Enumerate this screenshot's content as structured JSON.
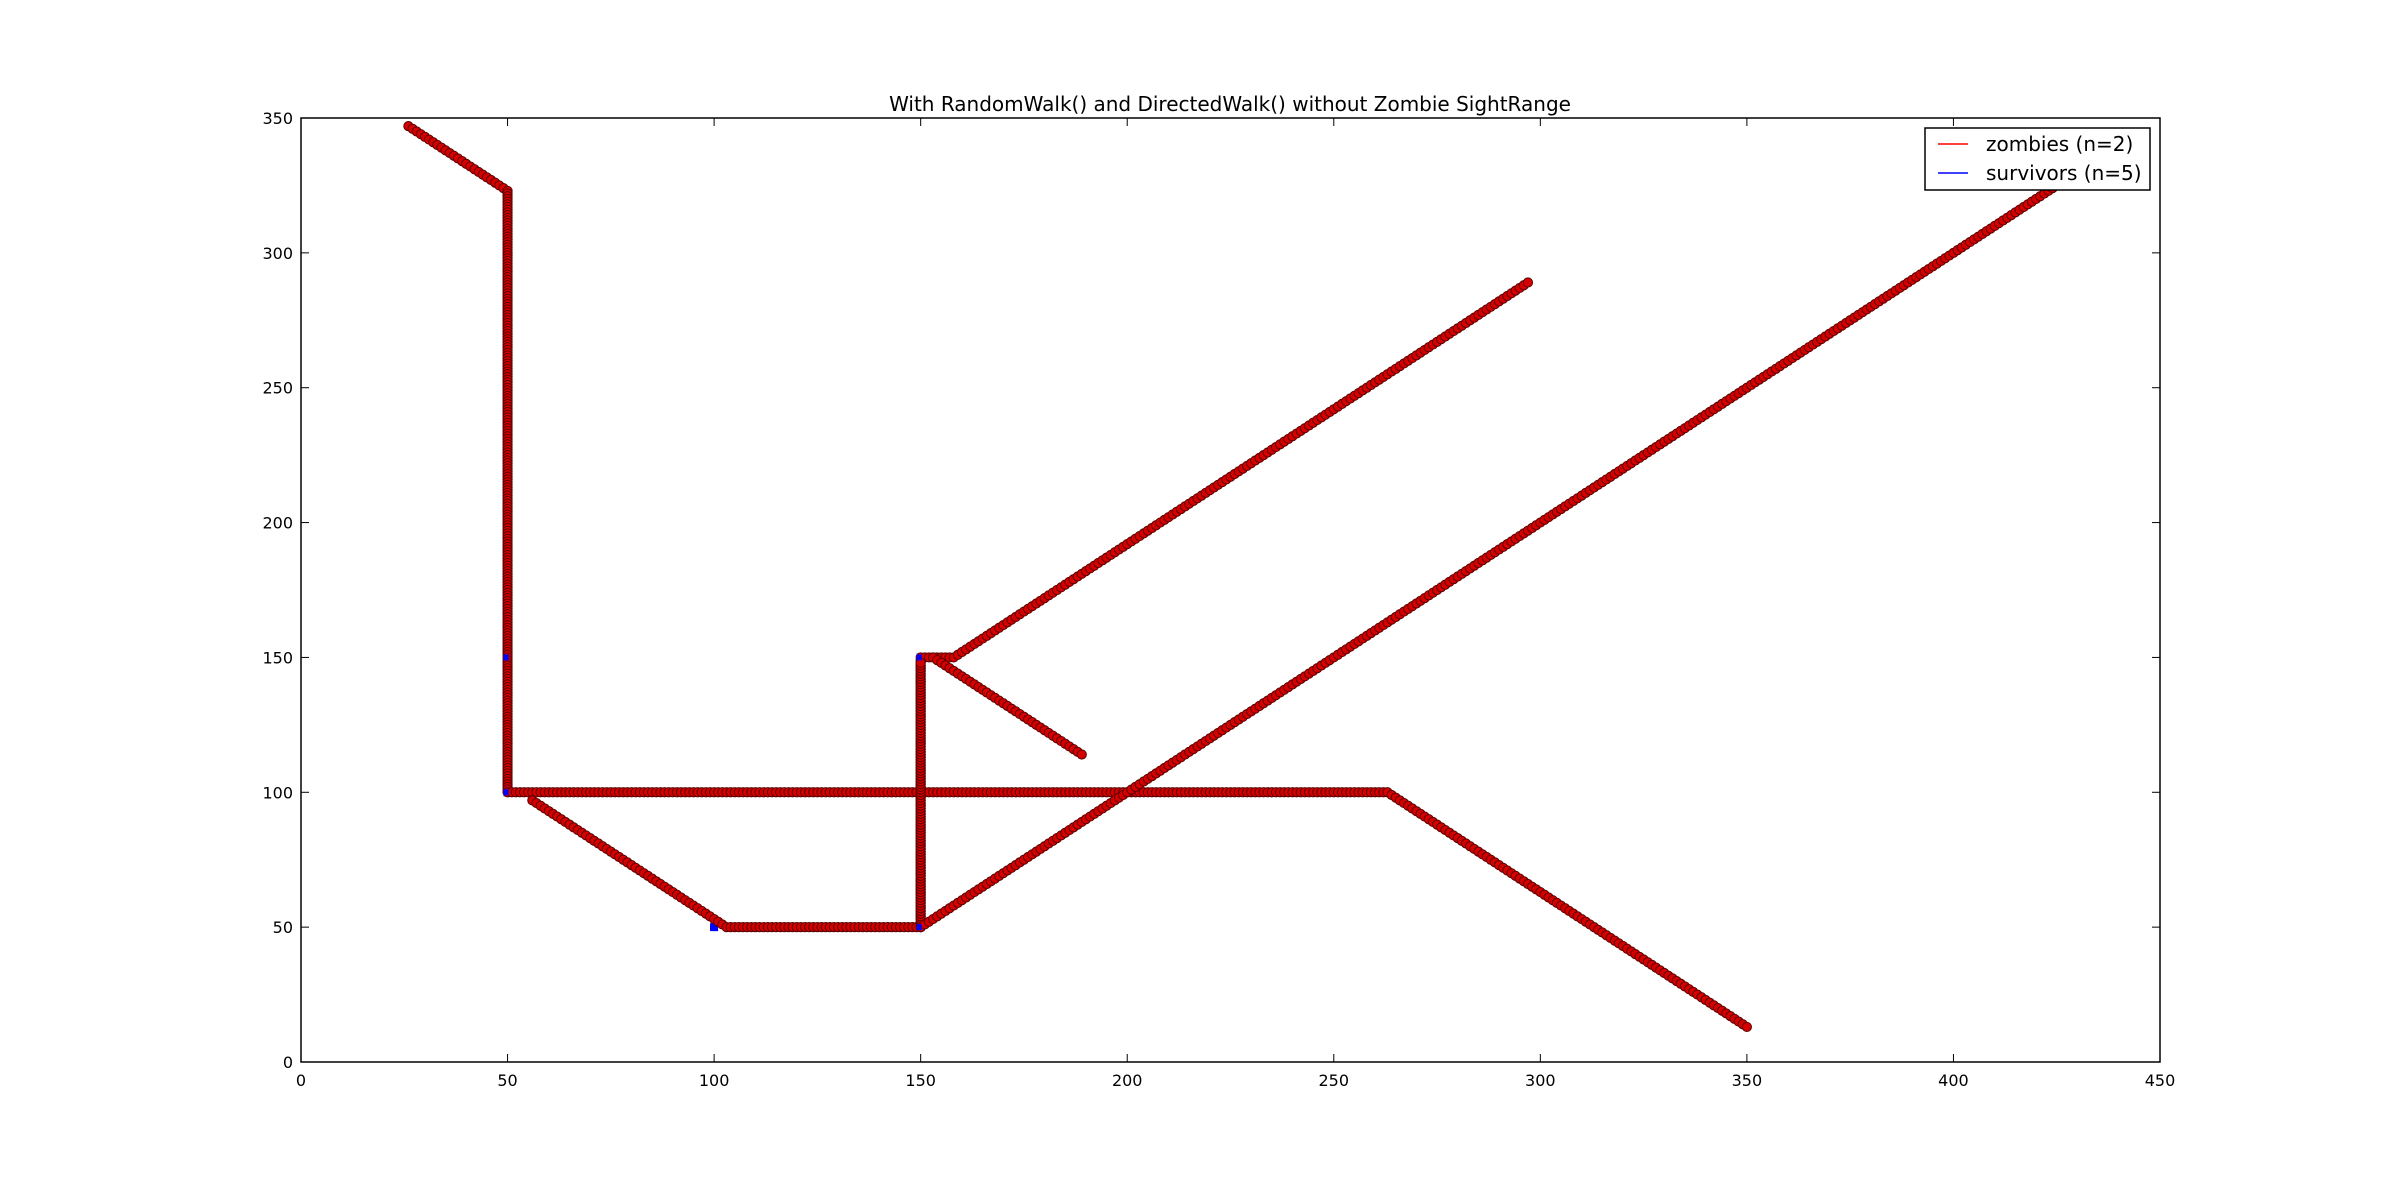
{
  "chart_data": {
    "type": "scatter",
    "title": "With RandomWalk() and DirectedWalk() without Zombie SightRange",
    "xlabel": "",
    "ylabel": "",
    "xlim": [
      0,
      450
    ],
    "ylim": [
      0,
      350
    ],
    "x_ticks": [
      0,
      50,
      100,
      150,
      200,
      250,
      300,
      350,
      400,
      450
    ],
    "y_ticks": [
      0,
      50,
      100,
      150,
      200,
      250,
      300,
      350
    ],
    "grid": false,
    "legend_position": "top-right",
    "legend": [
      {
        "label": "zombies (n=2)",
        "color": "#ff0000"
      },
      {
        "label": "survivors (n=5)",
        "color": "#0000ff"
      }
    ],
    "marker_fill": "#d40000",
    "marker_edge": "#5a0000",
    "series": [
      {
        "name": "zombies (n=2)",
        "color": "#ff0000",
        "paths": [
          [
            [
              26,
              347
            ],
            [
              50,
              323
            ],
            [
              50,
              100
            ],
            [
              263,
              100
            ],
            [
              350,
              13
            ]
          ],
          [
            [
              56,
              97
            ],
            [
              103,
              50
            ],
            [
              150,
              50
            ],
            [
              150,
              150
            ],
            [
              158,
              150
            ],
            [
              297,
              289
            ]
          ],
          [
            [
              150,
              53
            ],
            [
              150,
              148
            ]
          ],
          [
            [
              153,
              150
            ],
            [
              189,
              114
            ]
          ],
          [
            [
              150,
              50
            ],
            [
              425,
              325
            ]
          ]
        ]
      },
      {
        "name": "survivors (n=5)",
        "color": "#0000ff",
        "points": [
          [
            50,
            150
          ],
          [
            50,
            100
          ],
          [
            100,
            50
          ],
          [
            150,
            50
          ],
          [
            150,
            150
          ]
        ]
      }
    ]
  }
}
